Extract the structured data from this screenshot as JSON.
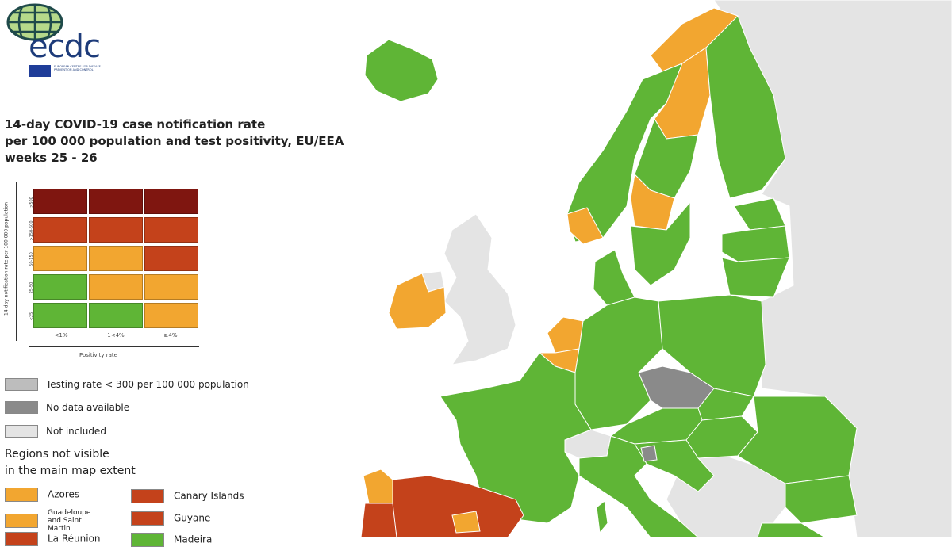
{
  "logo": {
    "text": "ecdc",
    "subtitle": "EUROPEAN CENTRE FOR DISEASE PREVENTION AND CONTROL"
  },
  "title": {
    "line1": "14-day COVID-19 case notification rate",
    "line2": "per 100 000 population and test positivity, EU/EEA",
    "line3": "weeks 25 - 26"
  },
  "colors": {
    "green": "#5fb536",
    "orange": "#f2a630",
    "red": "#c4421b",
    "dark_red": "#7f1610",
    "testing_grey": "#bdbdbd",
    "no_data_grey": "#8a8a8a",
    "not_included": "#e4e4e4",
    "sea": "#ffffff"
  },
  "matrix": {
    "y_title": "14-day notification rate per 100 000 population",
    "x_title": "Positivity rate",
    "y_ticks": [
      ">500",
      ">150-500",
      "50-150",
      "25-50",
      "<25"
    ],
    "x_ticks": [
      "<1%",
      "1<4%",
      "≥4%"
    ],
    "rows": [
      [
        "dark_red",
        "dark_red",
        "dark_red"
      ],
      [
        "red",
        "red",
        "red"
      ],
      [
        "orange",
        "orange",
        "red"
      ],
      [
        "green",
        "orange",
        "orange"
      ],
      [
        "green",
        "green",
        "orange"
      ]
    ]
  },
  "legend": {
    "testing": "Testing rate < 300 per 100 000 population",
    "no_data": "No data available",
    "not_included": "Not included"
  },
  "regions": {
    "title_line1": "Regions not visible",
    "title_line2": "in the main map extent",
    "items": [
      {
        "label": "Azores",
        "color": "orange"
      },
      {
        "label": "Canary Islands",
        "color": "red"
      },
      {
        "label": "Guadeloupe and Saint Martin",
        "color": "orange"
      },
      {
        "label": "Guyane",
        "color": "red"
      },
      {
        "label": "La Réunion",
        "color": "red"
      },
      {
        "label": "Madeira",
        "color": "green"
      }
    ]
  }
}
